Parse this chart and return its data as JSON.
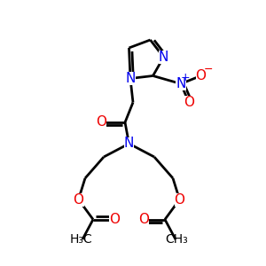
{
  "background_color": "#ffffff",
  "bond_color": "#000000",
  "bond_lw": 2.0,
  "atom_colors": {
    "N": "#0000ee",
    "O": "#ee0000",
    "C": "#000000"
  },
  "font_size_atom": 11,
  "font_size_small": 9,
  "font_size_methyl": 10
}
